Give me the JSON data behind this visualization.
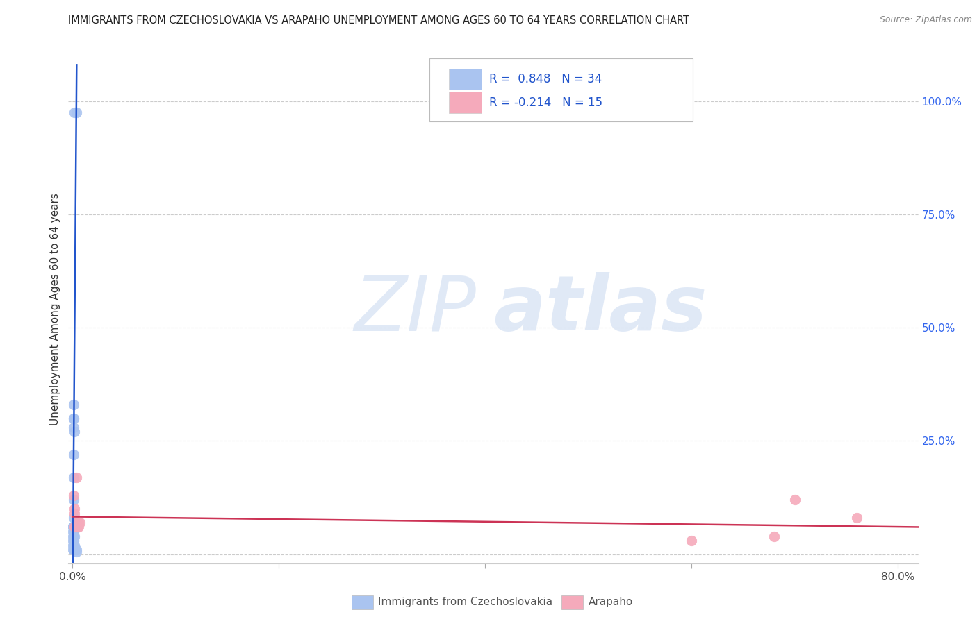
{
  "title": "IMMIGRANTS FROM CZECHOSLOVAKIA VS ARAPAHO UNEMPLOYMENT AMONG AGES 60 TO 64 YEARS CORRELATION CHART",
  "source": "Source: ZipAtlas.com",
  "ylabel": "Unemployment Among Ages 60 to 64 years",
  "watermark_zip": "ZIP",
  "watermark_atlas": "atlas",
  "blue_R": 0.848,
  "blue_N": 34,
  "pink_R": -0.214,
  "pink_N": 15,
  "blue_color": "#aac4f0",
  "pink_color": "#f5aabb",
  "blue_line_color": "#2255cc",
  "pink_line_color": "#cc3355",
  "title_color": "#222222",
  "right_axis_color": "#3366ee",
  "legend_text_color": "#2255cc",
  "xlim": [
    -0.004,
    0.82
  ],
  "ylim": [
    -0.02,
    1.1
  ],
  "blue_points_x": [
    0.0015,
    0.004,
    0.0008,
    0.0012,
    0.001,
    0.001,
    0.0015,
    0.0008,
    0.0008,
    0.0008,
    0.001,
    0.0006,
    0.0006,
    0.0006,
    0.001,
    0.001,
    0.0012,
    0.0006,
    0.001,
    0.0015,
    0.001,
    0.0006,
    0.001,
    0.001,
    0.001,
    0.0006,
    0.0006,
    0.001,
    0.0015,
    0.001,
    0.0006,
    0.001,
    0.0035,
    0.004
  ],
  "blue_points_y": [
    0.975,
    0.975,
    0.33,
    0.3,
    0.28,
    0.3,
    0.27,
    0.22,
    0.17,
    0.12,
    0.08,
    0.06,
    0.06,
    0.06,
    0.06,
    0.05,
    0.05,
    0.05,
    0.04,
    0.04,
    0.04,
    0.04,
    0.03,
    0.03,
    0.03,
    0.03,
    0.02,
    0.02,
    0.02,
    0.01,
    0.01,
    0.01,
    0.01,
    0.005
  ],
  "pink_points_x": [
    0.002,
    0.0015,
    0.001,
    0.002,
    0.004,
    0.006,
    0.005,
    0.007,
    0.004,
    0.005,
    0.006,
    0.7,
    0.68,
    0.6,
    0.76
  ],
  "pink_points_y": [
    0.1,
    0.09,
    0.13,
    0.06,
    0.17,
    0.07,
    0.07,
    0.07,
    0.06,
    0.06,
    0.06,
    0.12,
    0.04,
    0.03,
    0.08
  ],
  "blue_line_x": [
    0.0,
    0.004
  ],
  "blue_line_y": [
    -0.1,
    1.08
  ],
  "pink_line_x": [
    0.0,
    0.82
  ],
  "pink_line_y": [
    0.083,
    0.06
  ],
  "xticks": [
    0.0,
    0.2,
    0.4,
    0.6,
    0.8
  ],
  "xtick_labels": [
    "0.0%",
    "",
    "",
    "",
    "80.0%"
  ],
  "yticks_right": [
    0.0,
    0.25,
    0.5,
    0.75,
    1.0
  ],
  "ytick_labels_right": [
    "",
    "25.0%",
    "50.0%",
    "75.0%",
    "100.0%"
  ],
  "legend1_label": "Immigrants from Czechoslovakia",
  "legend2_label": "Arapaho",
  "background_color": "#ffffff",
  "grid_color": "#cccccc"
}
